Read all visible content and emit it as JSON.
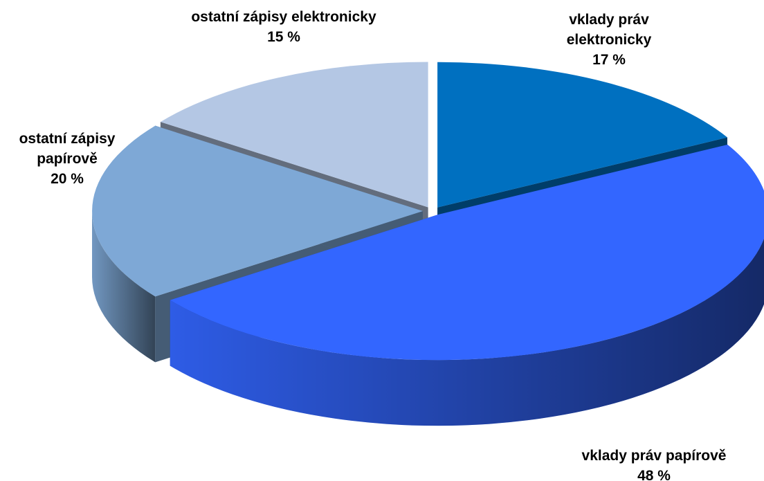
{
  "chart_data": {
    "type": "pie",
    "categories": [
      "vklady práv elektronicky",
      "vklady práv papírově",
      "ostatní zápisy papírově",
      "ostatní zápisy elektronicky"
    ],
    "values": [
      17,
      48,
      20,
      15
    ],
    "value_labels": [
      "17 %",
      "48 %",
      "20 %",
      "15 %"
    ],
    "colors": [
      "#0070c0",
      "#3366ff",
      "#7ea8d6",
      "#b4c7e4"
    ]
  }
}
